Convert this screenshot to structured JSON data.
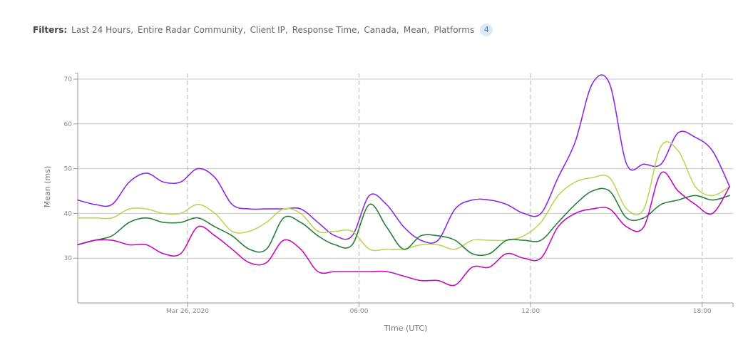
{
  "filters": {
    "label": "Filters:",
    "items": [
      "Last 24 Hours,",
      "Entire Radar Community,",
      "Client IP,",
      "Response Time,",
      "Canada,",
      "Mean,",
      "Platforms"
    ],
    "badge": "4"
  },
  "chart_data": {
    "type": "line",
    "xlabel": "Time (UTC)",
    "ylabel": "Mean (ms)",
    "ylim": [
      20,
      70
    ],
    "y_ticks": [
      30,
      40,
      50,
      60,
      70
    ],
    "xlim": [
      -6.4,
      31.8
    ],
    "x_ticks": [
      {
        "value": 0,
        "label": "Mar 26, 2020"
      },
      {
        "value": 10,
        "label": "06:00"
      },
      {
        "value": 20,
        "label": "12:00"
      },
      {
        "value": 30,
        "label": "18:00"
      }
    ],
    "x": [
      -6.4,
      -5.4,
      -4.4,
      -3.4,
      -2.4,
      -1.4,
      -0.4,
      0.6,
      1.6,
      2.6,
      3.6,
      4.6,
      5.6,
      6.6,
      7.6,
      8.6,
      9.6,
      10.6,
      11.6,
      12.6,
      13.6,
      14.6,
      15.6,
      16.6,
      17.6,
      18.6,
      19.6,
      20.6,
      21.6,
      22.6,
      23.6,
      24.6,
      25.6,
      26.6,
      27.6,
      28.6,
      29.6,
      30.6,
      31.6
    ],
    "grid": true,
    "series": [
      {
        "color": "#8a2be2",
        "values": [
          43,
          42,
          42,
          47,
          49,
          47,
          47,
          50,
          48,
          42,
          41,
          41,
          41,
          41,
          38,
          35,
          35,
          44,
          42,
          37,
          34,
          34,
          41,
          43,
          43,
          42,
          40,
          40,
          48,
          56,
          69,
          69,
          51,
          51,
          51,
          58,
          57,
          54,
          46
        ]
      },
      {
        "color": "#bbd65a",
        "values": [
          39,
          39,
          39,
          41,
          41,
          40,
          40,
          42,
          40,
          36,
          36,
          38,
          41,
          40,
          36,
          36,
          36,
          32,
          32,
          32,
          33,
          33,
          32,
          34,
          34,
          34,
          35,
          38,
          44,
          47,
          48,
          48,
          41,
          41,
          55,
          54,
          46,
          44,
          46
        ]
      },
      {
        "color": "#2a7d3c",
        "values": [
          33,
          34,
          35,
          38,
          39,
          38,
          38,
          39,
          37,
          35,
          32,
          32,
          39,
          38,
          35,
          33,
          33,
          42,
          37,
          32,
          35,
          35,
          34,
          31,
          31,
          34,
          34,
          34,
          38,
          42,
          45,
          45,
          39,
          39,
          42,
          43,
          44,
          43,
          44
        ]
      },
      {
        "color": "#c010b8",
        "values": [
          33,
          34,
          34,
          33,
          33,
          31,
          31,
          37,
          35,
          32,
          29,
          29,
          34,
          32,
          27,
          27,
          27,
          27,
          27,
          26,
          25,
          25,
          24,
          28,
          28,
          31,
          30,
          30,
          37,
          40,
          41,
          41,
          37,
          37,
          49,
          45,
          42,
          40,
          46
        ]
      }
    ]
  }
}
